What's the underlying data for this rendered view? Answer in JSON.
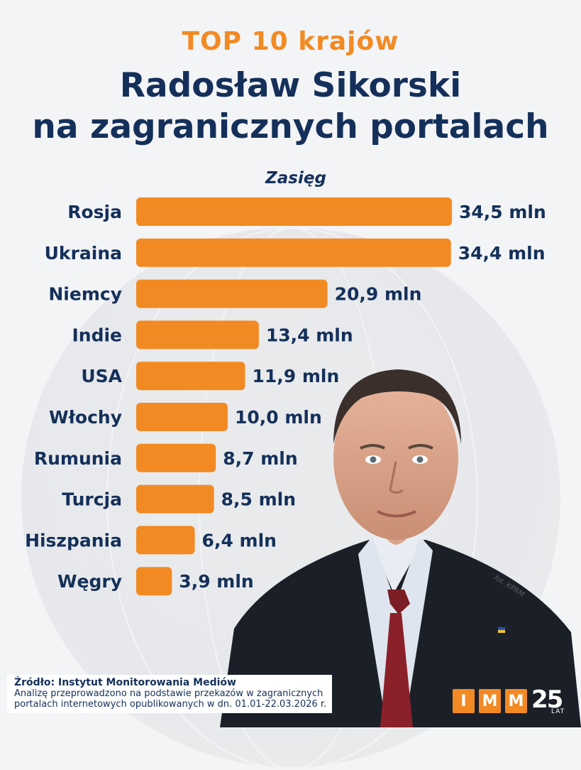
{
  "header": {
    "kicker": "TOP 10 krajów",
    "title_line1": "Radosław Sikorski",
    "title_line2": "na zagranicznych portalach"
  },
  "chart_data": {
    "type": "bar",
    "orientation": "horizontal",
    "title": "Zasięg",
    "categories": [
      "Rosja",
      "Ukraina",
      "Niemcy",
      "Indie",
      "USA",
      "Włochy",
      "Rumunia",
      "Turcja",
      "Hiszpania",
      "Węgry"
    ],
    "values": [
      34.5,
      34.4,
      20.9,
      13.4,
      11.9,
      10.0,
      8.7,
      8.5,
      6.4,
      3.9
    ],
    "value_labels": [
      "34,5 mln",
      "34,4 mln",
      "20,9 mln",
      "13,4 mln",
      "11,9 mln",
      "10,0 mln",
      "8,7 mln",
      "8,5 mln",
      "6,4 mln",
      "3,9 mln"
    ],
    "unit": "mln",
    "bar_color": "#f28a24",
    "label_color": "#14305a",
    "grid": false,
    "legend": false
  },
  "photo_credit": "fot. KPRM",
  "footer": {
    "source": "Źródło: Instytut Monitorowania Mediów",
    "note_line1": "Analizę przeprowadzono na podstawie przekazów w zagranicznych",
    "note_line2": "portalach internetowych opublikowanych w dn. 01.01-22.03.2026 r."
  },
  "logo": {
    "letters": [
      "I",
      "M",
      "M"
    ],
    "anniversary_number": "25",
    "anniversary_word": "LAT"
  },
  "colors": {
    "background": "#f3f4f6",
    "accent": "#f28a24",
    "navy": "#14305a"
  }
}
